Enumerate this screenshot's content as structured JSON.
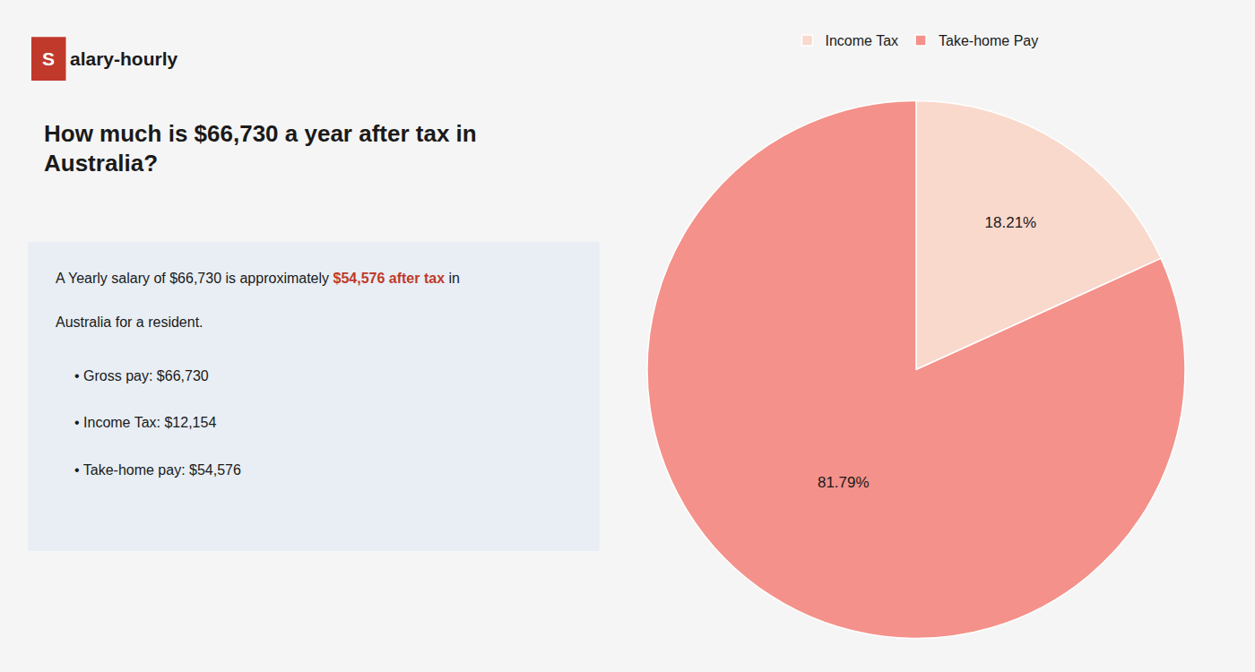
{
  "chart_data": {
    "type": "pie",
    "title": "How much is $66,730 a year after tax in\nAustralia?",
    "categories": [
      "Income Tax",
      "Take-home Pay"
    ],
    "values": [
      18.21,
      81.79
    ],
    "value_labels": [
      "18.21%",
      "81.79%"
    ],
    "data_labels": true,
    "colors": [
      "#f9d9cc",
      "#f4918a"
    ],
    "legend": "top",
    "annotations": [
      "S",
      "alary-hourly",
      "A Yearly salary of $66,730 is approximately",
      "$54,576 after tax",
      "in",
      "Australia for a resident.",
      "• Gross pay: $66,730",
      "• Income Tax: $12,154",
      "• Take-home pay: $54,576"
    ]
  }
}
